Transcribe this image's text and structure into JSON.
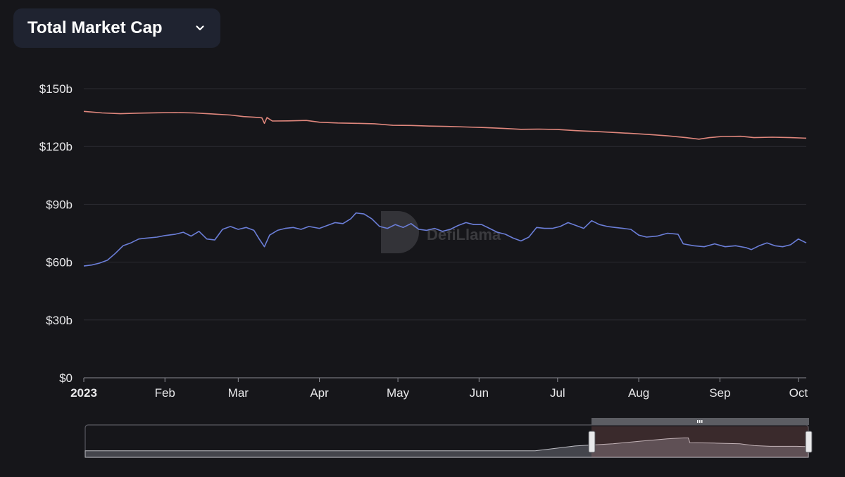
{
  "header": {
    "metric_label": "Total Market Cap"
  },
  "watermark": {
    "text": "DefiLlama"
  },
  "colors": {
    "background": "#16161a",
    "selector_bg": "#1f2330",
    "series_top": "#e0877d",
    "series_bottom": "#6b7ed8",
    "gridline": "#2c2c33",
    "axis_text": "#e8e8ea"
  },
  "chart_data": {
    "type": "line",
    "title": "",
    "xlabel": "",
    "ylabel": "",
    "ylim": [
      0,
      150
    ],
    "y_ticks": [
      {
        "value": 0,
        "label": "$0"
      },
      {
        "value": 30,
        "label": "$30b"
      },
      {
        "value": 60,
        "label": "$60b"
      },
      {
        "value": 90,
        "label": "$90b"
      },
      {
        "value": 120,
        "label": "$120b"
      },
      {
        "value": 150,
        "label": "$150b"
      }
    ],
    "x_ticks": [
      {
        "date": "2023-01-01",
        "label": "2023",
        "bold": true
      },
      {
        "date": "2023-02-01",
        "label": "Feb"
      },
      {
        "date": "2023-03-01",
        "label": "Mar"
      },
      {
        "date": "2023-04-01",
        "label": "Apr"
      },
      {
        "date": "2023-05-01",
        "label": "May"
      },
      {
        "date": "2023-06-01",
        "label": "Jun"
      },
      {
        "date": "2023-07-01",
        "label": "Jul"
      },
      {
        "date": "2023-08-01",
        "label": "Aug"
      },
      {
        "date": "2023-09-01",
        "label": "Sep"
      },
      {
        "date": "2023-10-01",
        "label": "Oct"
      }
    ],
    "x_range": [
      "2023-01-01",
      "2023-10-04"
    ],
    "series": [
      {
        "color": "#e0877d",
        "points": [
          [
            "2023-01-01",
            138.2
          ],
          [
            "2023-01-08",
            137.4
          ],
          [
            "2023-01-15",
            137.0
          ],
          [
            "2023-01-22",
            137.3
          ],
          [
            "2023-01-29",
            137.5
          ],
          [
            "2023-02-05",
            137.6
          ],
          [
            "2023-02-12",
            137.4
          ],
          [
            "2023-02-19",
            136.9
          ],
          [
            "2023-02-26",
            136.3
          ],
          [
            "2023-03-03",
            135.5
          ],
          [
            "2023-03-07",
            135.2
          ],
          [
            "2023-03-10",
            134.9
          ],
          [
            "2023-03-11",
            132.0
          ],
          [
            "2023-03-12",
            135.0
          ],
          [
            "2023-03-14",
            133.2
          ],
          [
            "2023-03-20",
            133.3
          ],
          [
            "2023-03-27",
            133.5
          ],
          [
            "2023-04-01",
            132.6
          ],
          [
            "2023-04-08",
            132.2
          ],
          [
            "2023-04-15",
            132.0
          ],
          [
            "2023-04-22",
            131.8
          ],
          [
            "2023-04-29",
            131.0
          ],
          [
            "2023-05-06",
            130.9
          ],
          [
            "2023-05-13",
            130.6
          ],
          [
            "2023-05-20",
            130.4
          ],
          [
            "2023-05-27",
            130.1
          ],
          [
            "2023-06-03",
            129.8
          ],
          [
            "2023-06-10",
            129.4
          ],
          [
            "2023-06-17",
            128.9
          ],
          [
            "2023-06-24",
            129.0
          ],
          [
            "2023-07-01",
            128.8
          ],
          [
            "2023-07-08",
            128.2
          ],
          [
            "2023-07-15",
            127.8
          ],
          [
            "2023-07-22",
            127.3
          ],
          [
            "2023-07-29",
            126.8
          ],
          [
            "2023-08-05",
            126.2
          ],
          [
            "2023-08-12",
            125.5
          ],
          [
            "2023-08-19",
            124.6
          ],
          [
            "2023-08-24",
            123.8
          ],
          [
            "2023-08-28",
            124.6
          ],
          [
            "2023-09-02",
            125.2
          ],
          [
            "2023-09-09",
            125.3
          ],
          [
            "2023-09-14",
            124.6
          ],
          [
            "2023-09-21",
            124.8
          ],
          [
            "2023-09-28",
            124.6
          ],
          [
            "2023-10-04",
            124.3
          ]
        ]
      },
      {
        "color": "#6b7ed8",
        "points": [
          [
            "2023-01-01",
            58.0
          ],
          [
            "2023-01-04",
            58.5
          ],
          [
            "2023-01-07",
            59.5
          ],
          [
            "2023-01-10",
            61.0
          ],
          [
            "2023-01-13",
            64.5
          ],
          [
            "2023-01-16",
            68.5
          ],
          [
            "2023-01-19",
            70.0
          ],
          [
            "2023-01-22",
            72.0
          ],
          [
            "2023-01-25",
            72.5
          ],
          [
            "2023-01-29",
            73.0
          ],
          [
            "2023-02-01",
            73.8
          ],
          [
            "2023-02-05",
            74.5
          ],
          [
            "2023-02-08",
            75.5
          ],
          [
            "2023-02-11",
            73.5
          ],
          [
            "2023-02-14",
            76.0
          ],
          [
            "2023-02-17",
            72.0
          ],
          [
            "2023-02-20",
            71.5
          ],
          [
            "2023-02-23",
            77.0
          ],
          [
            "2023-02-26",
            78.5
          ],
          [
            "2023-03-01",
            77.0
          ],
          [
            "2023-03-04",
            78.0
          ],
          [
            "2023-03-07",
            76.5
          ],
          [
            "2023-03-09",
            72.0
          ],
          [
            "2023-03-11",
            68.0
          ],
          [
            "2023-03-13",
            74.0
          ],
          [
            "2023-03-16",
            76.5
          ],
          [
            "2023-03-19",
            77.5
          ],
          [
            "2023-03-22",
            78.0
          ],
          [
            "2023-03-25",
            77.0
          ],
          [
            "2023-03-28",
            78.5
          ],
          [
            "2023-04-01",
            77.5
          ],
          [
            "2023-04-04",
            79.0
          ],
          [
            "2023-04-07",
            80.5
          ],
          [
            "2023-04-10",
            80.0
          ],
          [
            "2023-04-13",
            82.5
          ],
          [
            "2023-04-15",
            85.5
          ],
          [
            "2023-04-18",
            85.0
          ],
          [
            "2023-04-21",
            82.5
          ],
          [
            "2023-04-24",
            78.5
          ],
          [
            "2023-04-27",
            77.5
          ],
          [
            "2023-04-30",
            79.5
          ],
          [
            "2023-05-03",
            78.0
          ],
          [
            "2023-05-06",
            80.0
          ],
          [
            "2023-05-09",
            77.0
          ],
          [
            "2023-05-12",
            76.5
          ],
          [
            "2023-05-15",
            77.5
          ],
          [
            "2023-05-18",
            76.0
          ],
          [
            "2023-05-21",
            77.0
          ],
          [
            "2023-05-24",
            79.0
          ],
          [
            "2023-05-27",
            80.5
          ],
          [
            "2023-05-30",
            79.5
          ],
          [
            "2023-06-02",
            79.5
          ],
          [
            "2023-06-05",
            77.5
          ],
          [
            "2023-06-08",
            75.5
          ],
          [
            "2023-06-11",
            74.5
          ],
          [
            "2023-06-14",
            72.5
          ],
          [
            "2023-06-17",
            71.0
          ],
          [
            "2023-06-20",
            73.0
          ],
          [
            "2023-06-23",
            78.0
          ],
          [
            "2023-06-26",
            77.5
          ],
          [
            "2023-06-29",
            77.5
          ],
          [
            "2023-07-02",
            78.5
          ],
          [
            "2023-07-05",
            80.5
          ],
          [
            "2023-07-08",
            79.0
          ],
          [
            "2023-07-11",
            77.5
          ],
          [
            "2023-07-14",
            81.5
          ],
          [
            "2023-07-17",
            79.5
          ],
          [
            "2023-07-20",
            78.5
          ],
          [
            "2023-07-23",
            78.0
          ],
          [
            "2023-07-26",
            77.5
          ],
          [
            "2023-07-29",
            77.0
          ],
          [
            "2023-08-01",
            74.0
          ],
          [
            "2023-08-04",
            73.0
          ],
          [
            "2023-08-08",
            73.5
          ],
          [
            "2023-08-12",
            75.0
          ],
          [
            "2023-08-16",
            74.5
          ],
          [
            "2023-08-18",
            69.5
          ],
          [
            "2023-08-22",
            68.5
          ],
          [
            "2023-08-26",
            68.0
          ],
          [
            "2023-08-30",
            69.5
          ],
          [
            "2023-09-03",
            68.0
          ],
          [
            "2023-09-07",
            68.5
          ],
          [
            "2023-09-11",
            67.5
          ],
          [
            "2023-09-13",
            66.5
          ],
          [
            "2023-09-16",
            68.5
          ],
          [
            "2023-09-19",
            70.0
          ],
          [
            "2023-09-22",
            68.5
          ],
          [
            "2023-09-25",
            68.0
          ],
          [
            "2023-09-28",
            69.0
          ],
          [
            "2023-10-01",
            72.0
          ],
          [
            "2023-10-04",
            70.0
          ]
        ]
      }
    ],
    "brush": {
      "overview_points": [
        [
          "2022-11-15",
          20
        ],
        [
          "2023-01-01",
          35
        ],
        [
          "2023-02-15",
          42
        ],
        [
          "2023-03-20",
          50
        ],
        [
          "2023-04-20",
          57
        ],
        [
          "2023-05-10",
          60
        ],
        [
          "2023-05-15",
          60
        ],
        [
          "2023-05-17",
          45
        ],
        [
          "2023-06-15",
          44
        ],
        [
          "2023-07-15",
          42
        ],
        [
          "2023-08-01",
          36
        ],
        [
          "2023-08-20",
          34
        ],
        [
          "2023-09-20",
          34
        ],
        [
          "2023-10-04",
          33
        ]
      ],
      "full_range": [
        "2021-06-01",
        "2023-10-04"
      ],
      "selected_range": [
        "2023-01-01",
        "2023-10-04"
      ]
    }
  }
}
